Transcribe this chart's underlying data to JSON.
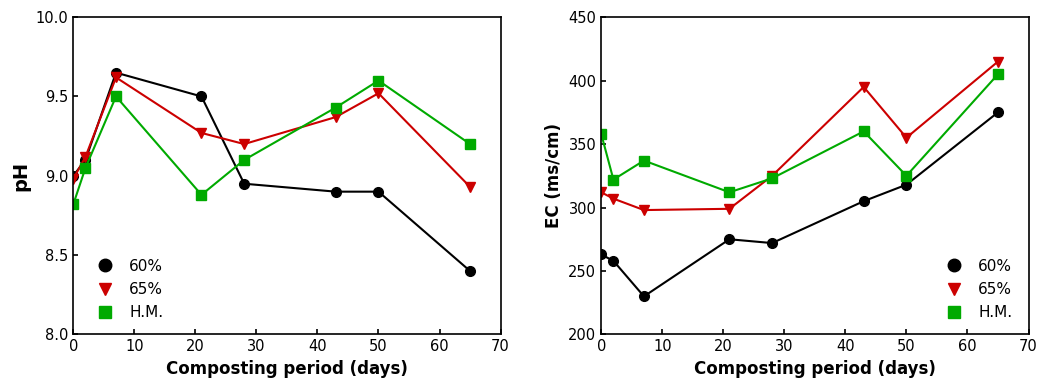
{
  "ph_days": [
    0,
    2,
    7,
    21,
    28,
    43,
    50,
    65
  ],
  "ph_60": [
    9.0,
    9.1,
    9.65,
    9.5,
    8.95,
    8.9,
    8.9,
    8.4
  ],
  "ph_65": [
    8.98,
    9.12,
    9.62,
    9.27,
    9.2,
    9.37,
    9.52,
    8.93
  ],
  "ph_hm": [
    8.82,
    9.05,
    9.5,
    8.88,
    9.1,
    9.43,
    9.6,
    9.2
  ],
  "ec_days": [
    0,
    2,
    7,
    21,
    28,
    43,
    50,
    65
  ],
  "ec_60": [
    263,
    258,
    230,
    275,
    272,
    305,
    318,
    375
  ],
  "ec_65": [
    312,
    307,
    298,
    299,
    325,
    395,
    355,
    415
  ],
  "ec_hm": [
    358,
    322,
    337,
    312,
    323,
    360,
    325,
    405
  ],
  "color_60": "#000000",
  "color_65": "#cc0000",
  "color_hm": "#00aa00",
  "ph_ylabel": "pH",
  "ec_ylabel": "EC (ms/cm)",
  "xlabel": "Composting period (days)",
  "ph_ylim": [
    8.0,
    10.0
  ],
  "ph_yticks": [
    8.0,
    8.5,
    9.0,
    9.5,
    10.0
  ],
  "ec_ylim": [
    200,
    450
  ],
  "ec_yticks": [
    200,
    250,
    300,
    350,
    400,
    450
  ],
  "xlim": [
    0,
    70
  ],
  "xticks": [
    0,
    10,
    20,
    30,
    40,
    50,
    60,
    70
  ],
  "legend_labels": [
    "60%",
    "65%",
    "H.M."
  ]
}
